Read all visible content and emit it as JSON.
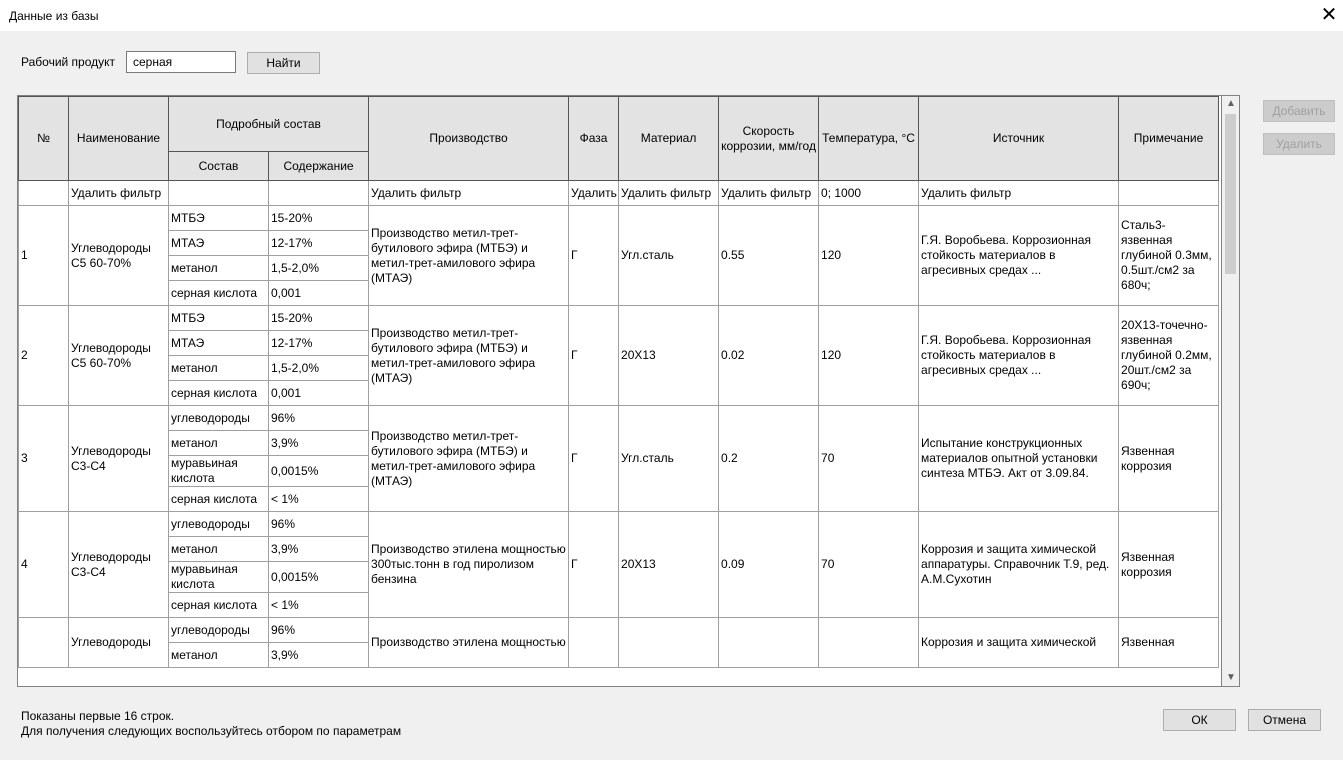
{
  "window": {
    "title": "Данные из базы"
  },
  "search": {
    "label": "Рабочий продукт",
    "value": "серная",
    "button": "Найти"
  },
  "side_buttons": [
    "Добавить",
    "Удалить"
  ],
  "table": {
    "headers": {
      "number": "№",
      "name": "Наименование",
      "composition": "Подробный состав",
      "component": "Состав",
      "content": "Содержание",
      "production": "Производство",
      "phase": "Фаза",
      "material": "Материал",
      "rate": "Скорость коррозии, мм/год",
      "temperature": "Температура, °C",
      "source": "Источник",
      "note": "Примечание"
    },
    "filters": [
      null,
      "Удалить фильтр",
      null,
      null,
      "Удалить фильтр",
      "Удалить",
      "Удалить фильтр",
      "Удалить фильтр",
      "0; 1000",
      "Удалить фильтр",
      null
    ],
    "rows": [
      {
        "number": "1",
        "name": "Углеводороды С5 60-70%",
        "components": [
          [
            "МТБЭ",
            "15-20%"
          ],
          [
            "МТАЭ",
            "12-17%"
          ],
          [
            "метанол",
            "1,5-2,0%"
          ],
          [
            "серная кислота",
            "0,001"
          ]
        ],
        "production": "Производство метил-трет-бутилового эфира (МТБЭ) и метил-трет-амилового эфира (МТАЭ)",
        "phase": "Г",
        "material": "Угл.сталь",
        "rate": "0.55",
        "temperature": "120",
        "source": "Г.Я. Воробьева. Коррозионная стойкость материалов в агресивных средах ...",
        "note": "Сталь3- язвенная глубиной 0.3мм, 0.5шт./см2 за 680ч;"
      },
      {
        "number": "2",
        "name": "Углеводороды С5 60-70%",
        "components": [
          [
            "МТБЭ",
            "15-20%"
          ],
          [
            "МТАЭ",
            "12-17%"
          ],
          [
            "метанол",
            "1,5-2,0%"
          ],
          [
            "серная кислота",
            "0,001"
          ]
        ],
        "production": "Производство метил-трет-бутилового эфира (МТБЭ) и метил-трет-амилового эфира (МТАЭ)",
        "phase": "Г",
        "material": "20Х13",
        "rate": "0.02",
        "temperature": "120",
        "source": "Г.Я. Воробьева. Коррозионная стойкость материалов в агресивных средах ...",
        "note": "20Х13-точечно-язвенная глубиной 0.2мм, 20шт./см2 за 690ч;"
      },
      {
        "number": "3",
        "name": "Углеводороды С3-С4",
        "components": [
          [
            "углеводороды",
            "96%"
          ],
          [
            "метанол",
            "3,9%"
          ],
          [
            "муравьиная кислота",
            "0,0015%"
          ],
          [
            "серная кислота",
            "< 1%"
          ]
        ],
        "production": "Производство метил-трет-бутилового эфира (МТБЭ) и метил-трет-амилового эфира (МТАЭ)",
        "phase": "Г",
        "material": "Угл.сталь",
        "rate": "0.2",
        "temperature": "70",
        "source": "Испытание конструкционных материалов опытной установки синтеза МТБЭ. Акт от 3.09.84.",
        "note": "Язвенная коррозия"
      },
      {
        "number": "4",
        "name": "Углеводороды С3-С4",
        "components": [
          [
            "углеводороды",
            "96%"
          ],
          [
            "метанол",
            "3,9%"
          ],
          [
            "муравьиная кислота",
            "0,0015%"
          ],
          [
            "серная кислота",
            "< 1%"
          ]
        ],
        "production": "Производство этилена мощностью 300тыс.тонн в год пиролизом бензина",
        "phase": "Г",
        "material": "20Х13",
        "rate": "0.09",
        "temperature": "70",
        "source": "Коррозия и защита химической аппаратуры. Справочник Т.9, ред. А.М.Сухотин",
        "note": "Язвенная коррозия"
      },
      {
        "number": null,
        "name": "Углеводороды",
        "components": [
          [
            "углеводороды",
            "96%"
          ],
          [
            "метанол",
            "3,9%"
          ]
        ],
        "production": "Производство этилена мощностью",
        "phase": null,
        "material": null,
        "rate": null,
        "temperature": null,
        "source": "Коррозия и защита химической",
        "note": "Язвенная"
      }
    ]
  },
  "footer": {
    "info": [
      "Показаны первые 16 строк.",
      "Для получения следующих воспользуйтесь отбором по параметрам"
    ],
    "ok": "ОК",
    "cancel": "Отмена"
  }
}
